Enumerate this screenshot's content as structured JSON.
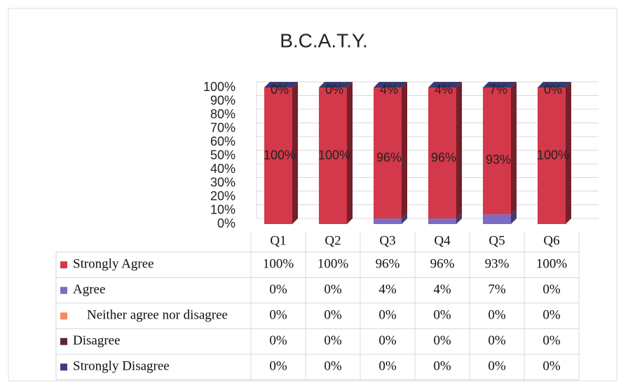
{
  "chart_data": {
    "type": "bar",
    "stacked": true,
    "title": "B.C.A.T.Y.",
    "categories": [
      "Q1",
      "Q2",
      "Q3",
      "Q4",
      "Q5",
      "Q6"
    ],
    "series": [
      {
        "name": "Strongly Disagree",
        "color": "#3d3f7c",
        "values": [
          0,
          0,
          0,
          0,
          0,
          0
        ],
        "value_labels": [
          "0%",
          "0%",
          "0%",
          "0%",
          "0%",
          "0%"
        ]
      },
      {
        "name": "Disagree",
        "color": "#5b2b2e",
        "values": [
          0,
          0,
          0,
          0,
          0,
          0
        ],
        "value_labels": [
          "0%",
          "0%",
          "0%",
          "0%",
          "0%",
          "0%"
        ]
      },
      {
        "name": "Neither agree nor disagree",
        "color": "#f28b5c",
        "values": [
          0,
          0,
          0,
          0,
          0,
          0
        ],
        "value_labels": [
          "0%",
          "0%",
          "0%",
          "0%",
          "0%",
          "0%"
        ]
      },
      {
        "name": "Agree",
        "color": "#7a6cc4",
        "values": [
          0,
          0,
          4,
          4,
          7,
          0
        ],
        "value_labels": [
          "0%",
          "0%",
          "4%",
          "4%",
          "7%",
          "0%"
        ]
      },
      {
        "name": "Strongly Agree",
        "color": "#d3394a",
        "values": [
          100,
          100,
          96,
          96,
          93,
          100
        ],
        "value_labels": [
          "100%",
          "100%",
          "96%",
          "96%",
          "93%",
          "100%"
        ]
      }
    ],
    "ylim": [
      0,
      100
    ],
    "yticks": [
      {
        "value": 0,
        "label": "0%"
      },
      {
        "value": 10,
        "label": "10%"
      },
      {
        "value": 20,
        "label": "20%"
      },
      {
        "value": 30,
        "label": "30%"
      },
      {
        "value": 40,
        "label": "40%"
      },
      {
        "value": 50,
        "label": "50%"
      },
      {
        "value": 60,
        "label": "60%"
      },
      {
        "value": 70,
        "label": "70%"
      },
      {
        "value": 80,
        "label": "80%"
      },
      {
        "value": 90,
        "label": "90%"
      },
      {
        "value": 100,
        "label": "100%"
      }
    ],
    "grid": true
  }
}
